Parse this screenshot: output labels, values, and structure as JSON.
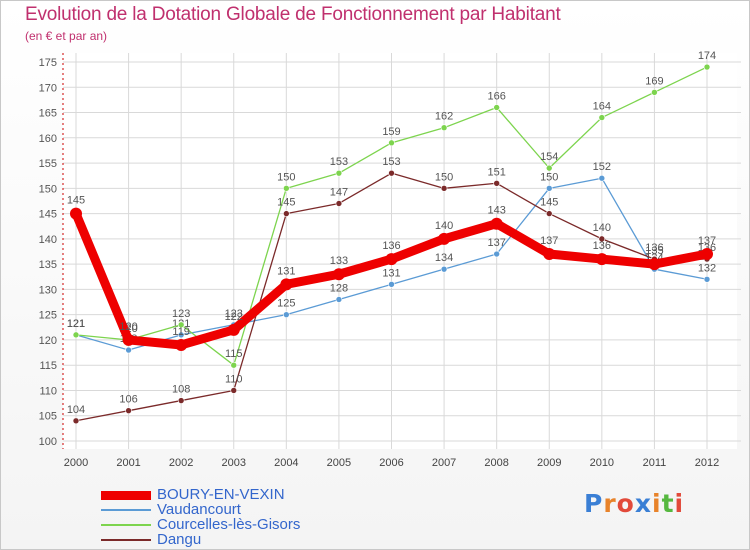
{
  "header": {
    "title": "Evolution de la Dotation Globale de Fonctionnement par Habitant",
    "subtitle": "(en € et par an)"
  },
  "brand": {
    "logo_text": "Proxiti",
    "logo_letter_colors": [
      "#3a7fd5",
      "#e8832a",
      "#e24a3a",
      "#3a7fd5",
      "#e8832a",
      "#56b840",
      "#e24a3a"
    ]
  },
  "chart_data": {
    "type": "line",
    "title": "Evolution de la Dotation Globale de Fonctionnement par Habitant",
    "subtitle": "(en € et par an)",
    "x": [
      "2000",
      "2001",
      "2002",
      "2003",
      "2004",
      "2005",
      "2006",
      "2007",
      "2008",
      "2009",
      "2010",
      "2011",
      "2012"
    ],
    "ylim": [
      100,
      175
    ],
    "yticks": [
      100,
      105,
      110,
      115,
      120,
      125,
      130,
      135,
      140,
      145,
      150,
      155,
      160,
      165,
      170,
      175
    ],
    "grid": true,
    "legend_position": "bottom-left",
    "series": [
      {
        "name": "BOURY-EN-VEXIN",
        "color": "#ee0000",
        "emphasis": true,
        "values": [
          145,
          120,
          119,
          122,
          131,
          133,
          136,
          140,
          143,
          137,
          136,
          135,
          137
        ]
      },
      {
        "name": "Vaudancourt",
        "color": "#5b9bd5",
        "emphasis": false,
        "values": [
          121,
          118,
          121,
          123,
          125,
          128,
          131,
          134,
          137,
          150,
          152,
          134,
          132
        ]
      },
      {
        "name": "Courcelles-lès-Gisors",
        "color": "#7dd44e",
        "emphasis": false,
        "values": [
          121,
          120,
          123,
          115,
          150,
          153,
          159,
          162,
          166,
          154,
          164,
          169,
          174
        ]
      },
      {
        "name": "Dangu",
        "color": "#7b2a2a",
        "emphasis": false,
        "values": [
          104,
          106,
          108,
          110,
          145,
          147,
          153,
          150,
          151,
          145,
          140,
          136,
          136
        ]
      }
    ]
  }
}
